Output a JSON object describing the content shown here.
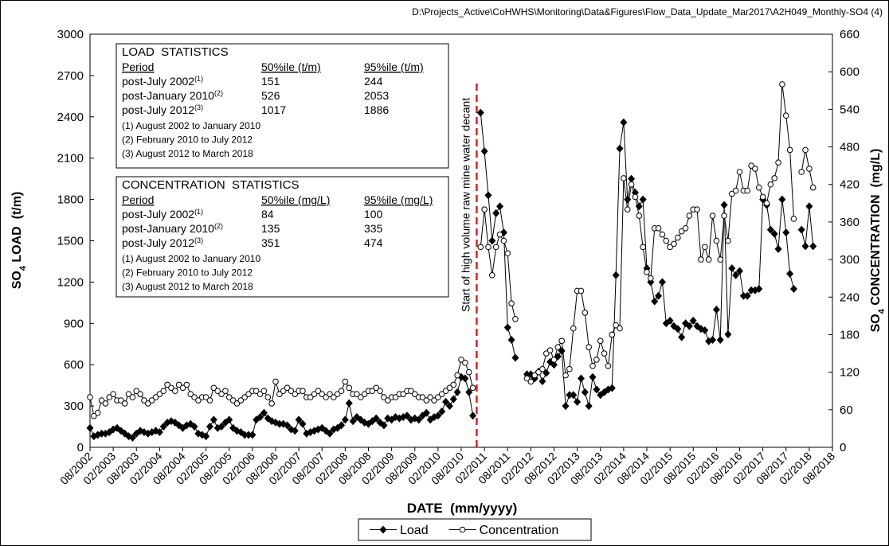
{
  "chart_data": {
    "type": "line",
    "source_path": "D:\\Projects_Active\\CoHWHS\\Monitoring\\Data&Figures\\Flow_Data_Update_Mar2017\\A2H049_Monthly-SO4 (4)",
    "xlabel": "DATE  (mm/yyyy)",
    "ylabel": [
      "SO",
      "4",
      " LOAD  (t/m)"
    ],
    "y2label": [
      "SO",
      "4",
      " CONCENTRATION  (mg/L)"
    ],
    "xlim": [
      "08/2002",
      "08/2018"
    ],
    "xticks": [
      "08/2002",
      "02/2003",
      "08/2003",
      "02/2004",
      "08/2004",
      "02/2005",
      "08/2005",
      "02/2006",
      "08/2006",
      "02/2007",
      "08/2007",
      "02/2008",
      "08/2008",
      "02/2009",
      "08/2009",
      "02/2010",
      "08/2010",
      "02/2011",
      "08/2011",
      "02/2012",
      "08/2012",
      "02/2013",
      "08/2013",
      "02/2014",
      "08/2014",
      "02/2015",
      "08/2015",
      "02/2016",
      "08/2016",
      "02/2017",
      "08/2017",
      "02/2018",
      "08/2018"
    ],
    "ylim": [
      0,
      3000
    ],
    "yticks": [
      0,
      300,
      600,
      900,
      1200,
      1500,
      1800,
      2100,
      2400,
      2700,
      3000
    ],
    "y2lim": [
      0,
      660
    ],
    "y2ticks": [
      0,
      60,
      120,
      180,
      240,
      300,
      360,
      420,
      480,
      540,
      600,
      660
    ],
    "x": [
      "08/2002",
      "09/2002",
      "10/2002",
      "11/2002",
      "12/2002",
      "01/2003",
      "02/2003",
      "03/2003",
      "04/2003",
      "05/2003",
      "06/2003",
      "07/2003",
      "08/2003",
      "09/2003",
      "10/2003",
      "11/2003",
      "12/2003",
      "01/2004",
      "02/2004",
      "03/2004",
      "04/2004",
      "05/2004",
      "06/2004",
      "07/2004",
      "08/2004",
      "09/2004",
      "10/2004",
      "11/2004",
      "12/2004",
      "01/2005",
      "02/2005",
      "03/2005",
      "04/2005",
      "05/2005",
      "06/2005",
      "07/2005",
      "08/2005",
      "09/2005",
      "10/2005",
      "11/2005",
      "12/2005",
      "01/2006",
      "02/2006",
      "03/2006",
      "04/2006",
      "05/2006",
      "06/2006",
      "07/2006",
      "08/2006",
      "09/2006",
      "10/2006",
      "11/2006",
      "12/2006",
      "01/2007",
      "02/2007",
      "03/2007",
      "04/2007",
      "05/2007",
      "06/2007",
      "07/2007",
      "08/2007",
      "09/2007",
      "10/2007",
      "11/2007",
      "12/2007",
      "01/2008",
      "02/2008",
      "03/2008",
      "04/2008",
      "05/2008",
      "06/2008",
      "07/2008",
      "08/2008",
      "09/2008",
      "10/2008",
      "11/2008",
      "12/2008",
      "01/2009",
      "02/2009",
      "03/2009",
      "04/2009",
      "05/2009",
      "06/2009",
      "07/2009",
      "08/2009",
      "09/2009",
      "10/2009",
      "11/2009",
      "12/2009",
      "01/2010",
      "02/2010",
      "03/2010",
      "04/2010",
      "05/2010",
      "06/2010",
      "07/2010",
      "08/2010",
      "09/2010",
      "10/2010",
      "11/2010",
      "12/2010",
      "01/2011",
      "02/2011",
      "03/2011",
      "04/2011",
      "05/2011",
      "06/2011",
      "07/2011",
      "08/2011",
      "09/2011",
      "10/2011",
      "11/2011",
      "12/2011",
      "01/2012",
      "02/2012",
      "03/2012",
      "04/2012",
      "05/2012",
      "06/2012",
      "07/2012",
      "08/2012",
      "09/2012",
      "10/2012",
      "11/2012",
      "12/2012",
      "01/2013",
      "02/2013",
      "03/2013",
      "04/2013",
      "05/2013",
      "06/2013",
      "07/2013",
      "08/2013",
      "09/2013",
      "10/2013",
      "11/2013",
      "12/2013",
      "01/2014",
      "02/2014",
      "03/2014",
      "04/2014",
      "05/2014",
      "06/2014",
      "07/2014",
      "08/2014",
      "09/2014",
      "10/2014",
      "11/2014",
      "12/2014",
      "01/2015",
      "02/2015",
      "03/2015",
      "04/2015",
      "05/2015",
      "06/2015",
      "07/2015",
      "08/2015",
      "09/2015",
      "10/2015",
      "11/2015",
      "12/2015",
      "01/2016",
      "02/2016",
      "03/2016",
      "04/2016",
      "05/2016",
      "06/2016",
      "07/2016",
      "08/2016",
      "09/2016",
      "10/2016",
      "11/2016",
      "12/2016",
      "01/2017",
      "02/2017",
      "03/2017",
      "04/2017",
      "05/2017",
      "06/2017",
      "07/2017",
      "08/2017",
      "09/2017",
      "10/2017",
      "11/2017",
      "12/2017",
      "01/2018",
      "02/2018",
      "03/2018"
    ],
    "series": [
      {
        "name": "Load",
        "color": "#000000",
        "marker": "diamond",
        "axis": "y",
        "values": [
          140,
          80,
          90,
          100,
          100,
          110,
          130,
          140,
          120,
          100,
          80,
          70,
          100,
          120,
          110,
          100,
          110,
          120,
          110,
          150,
          180,
          190,
          180,
          160,
          140,
          160,
          170,
          150,
          100,
          90,
          80,
          150,
          200,
          140,
          150,
          180,
          200,
          140,
          120,
          110,
          90,
          90,
          90,
          200,
          220,
          250,
          210,
          190,
          180,
          170,
          170,
          160,
          130,
          120,
          200,
          170,
          100,
          110,
          120,
          130,
          140,
          120,
          100,
          130,
          140,
          160,
          200,
          320,
          190,
          220,
          200,
          180,
          170,
          190,
          210,
          180,
          160,
          210,
          200,
          220,
          210,
          220,
          230,
          200,
          210,
          200,
          230,
          250,
          200,
          220,
          230,
          260,
          330,
          300,
          350,
          400,
          510,
          500,
          400,
          230,
          null,
          2430,
          2150,
          1830,
          1500,
          1700,
          1750,
          1560,
          870,
          780,
          650,
          null,
          null,
          530,
          530,
          500,
          550,
          480,
          540,
          620,
          600,
          660,
          700,
          300,
          380,
          380,
          330,
          500,
          400,
          300,
          510,
          420,
          380,
          400,
          420,
          430,
          1250,
          2170,
          2360,
          1800,
          1950,
          1850,
          1750,
          1800,
          1300,
          1200,
          1060,
          1100,
          1200,
          900,
          920,
          880,
          860,
          800,
          900,
          880,
          920,
          880,
          860,
          850,
          770,
          780,
          1000,
          780,
          1760,
          820,
          1300,
          1250,
          1280,
          1100,
          1100,
          1140,
          1140,
          1150,
          1800,
          1760,
          1580,
          1550,
          1440,
          1800,
          1560,
          1260,
          1150,
          null,
          1580,
          1460,
          1750,
          1460
        ]
      },
      {
        "name": "Concentration",
        "color": "#000000",
        "marker": "circle",
        "axis": "y2",
        "values": [
          80,
          50,
          55,
          75,
          70,
          80,
          85,
          75,
          75,
          70,
          85,
          80,
          90,
          85,
          75,
          70,
          75,
          80,
          85,
          90,
          100,
          95,
          90,
          100,
          95,
          100,
          85,
          80,
          75,
          80,
          80,
          75,
          95,
          90,
          85,
          90,
          80,
          75,
          70,
          75,
          80,
          85,
          90,
          90,
          85,
          90,
          80,
          70,
          105,
          85,
          90,
          95,
          90,
          85,
          90,
          90,
          80,
          80,
          85,
          90,
          85,
          80,
          85,
          80,
          85,
          90,
          105,
          95,
          85,
          85,
          80,
          85,
          90,
          90,
          95,
          90,
          80,
          75,
          80,
          80,
          85,
          85,
          90,
          90,
          85,
          80,
          80,
          75,
          80,
          75,
          80,
          85,
          90,
          95,
          100,
          115,
          140,
          135,
          120,
          95,
          null,
          320,
          380,
          320,
          275,
          320,
          340,
          330,
          310,
          230,
          205,
          null,
          null,
          110,
          105,
          115,
          120,
          125,
          150,
          155,
          140,
          160,
          170,
          115,
          125,
          190,
          250,
          250,
          215,
          160,
          130,
          140,
          170,
          150,
          130,
          180,
          195,
          190,
          430,
          380,
          420,
          400,
          370,
          320,
          280,
          270,
          350,
          350,
          340,
          330,
          320,
          325,
          335,
          345,
          350,
          370,
          380,
          380,
          300,
          320,
          300,
          370,
          330,
          300,
          370,
          330,
          405,
          410,
          440,
          410,
          410,
          450,
          445,
          415,
          400,
          390,
          420,
          430,
          455,
          580,
          530,
          475,
          365,
          null,
          440,
          475,
          445,
          415
        ]
      }
    ],
    "annotation": {
      "text": "Start of high volume raw mine water decant",
      "x": "12/2010",
      "color": "#e02020"
    },
    "legend": "bottom",
    "stats_boxes": [
      {
        "title": "LOAD  STATISTICS",
        "columns": [
          "Period",
          "50%ile (t/m)",
          "95%ile (t/m)"
        ],
        "rows": [
          {
            "period": "post-July 2002",
            "note": "(1)",
            "p50": 151,
            "p95": 244
          },
          {
            "period": "post-January 2010",
            "note": "(2)",
            "p50": 526,
            "p95": 2053
          },
          {
            "period": "post-July 2012",
            "note": "(3)",
            "p50": 1017,
            "p95": 1886
          }
        ],
        "notes": [
          "(1) August 2002 to January 2010",
          "(2) February 2010 to July 2012",
          "(3) August 2012 to March 2018"
        ]
      },
      {
        "title": "CONCENTRATION  STATISTICS",
        "columns": [
          "Period",
          "50%ile (mg/L)",
          "95%ile (mg/L)"
        ],
        "rows": [
          {
            "period": "post-July 2002",
            "note": "(1)",
            "p50": 84,
            "p95": 100
          },
          {
            "period": "post-January 2010",
            "note": "(2)",
            "p50": 135,
            "p95": 335
          },
          {
            "period": "post-July 2012",
            "note": "(3)",
            "p50": 351,
            "p95": 474
          }
        ],
        "notes": [
          "(1) August 2002 to January 2010",
          "(2) February 2010 to July 2012",
          "(3) August 2012 to March 2018"
        ]
      }
    ]
  }
}
